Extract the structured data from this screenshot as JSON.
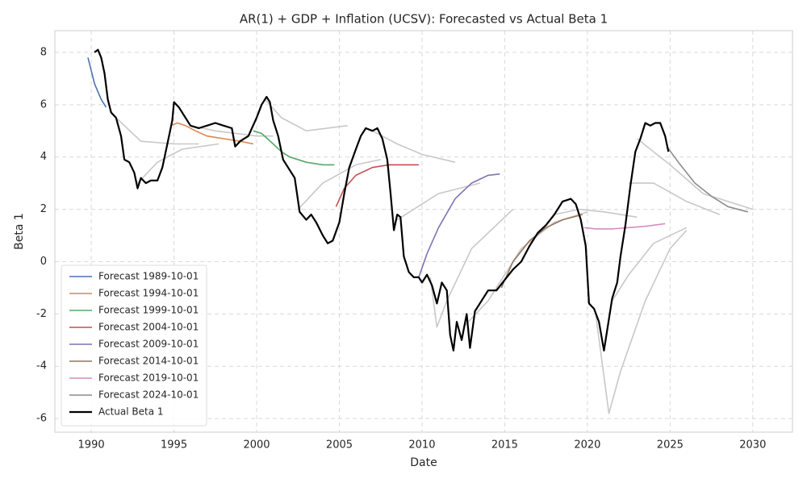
{
  "chart_data": {
    "type": "line",
    "title": "AR(1) + GDP + Inflation (UCSV): Forecasted vs Actual Beta 1",
    "x_label": "Date",
    "y_label": "Beta 1",
    "xlim": [
      1987.8,
      2032.4
    ],
    "ylim": [
      -6.52,
      8.83
    ],
    "xticks": [
      1990,
      1995,
      2000,
      2005,
      2010,
      2015,
      2020,
      2025,
      2030
    ],
    "yticks": [
      -6,
      -4,
      -2,
      0,
      2,
      4,
      6,
      8
    ],
    "grid": true,
    "legend": "lower left",
    "series": [
      {
        "color": "#c8c8c8",
        "x": [
          1991.5,
          1993,
          1995,
          1996.5
        ],
        "values": [
          5.5,
          4.6,
          4.5,
          4.5
        ]
      },
      {
        "color": "#c8c8c8",
        "x": [
          1992.8,
          1994,
          1995.5,
          1997.7
        ],
        "values": [
          3.0,
          3.8,
          4.3,
          4.5
        ]
      },
      {
        "color": "#c8c8c8",
        "x": [
          1996,
          1997.5,
          2000,
          2001
        ],
        "values": [
          5.2,
          5.0,
          4.8,
          4.8
        ]
      },
      {
        "color": "#c8c8c8",
        "x": [
          2000.5,
          2001.5,
          2003,
          2005.5
        ],
        "values": [
          6.2,
          5.5,
          5.0,
          5.2
        ]
      },
      {
        "color": "#c8c8c8",
        "x": [
          2002.5,
          2004,
          2006,
          2007.5
        ],
        "values": [
          2.0,
          3.0,
          3.7,
          3.9
        ]
      },
      {
        "color": "#c8c8c8",
        "x": [
          2007,
          2008.5,
          2010,
          2012
        ],
        "values": [
          5.0,
          4.5,
          4.1,
          3.8
        ]
      },
      {
        "color": "#c8c8c8",
        "x": [
          2008.5,
          2009.5,
          2011,
          2013.5
        ],
        "values": [
          1.6,
          2.0,
          2.6,
          3.0
        ]
      },
      {
        "color": "#c8c8c8",
        "x": [
          2010.5,
          2010.9,
          2011.5,
          2013,
          2015.5
        ],
        "values": [
          -0.6,
          -2.5,
          -1.5,
          0.5,
          2.0
        ]
      },
      {
        "color": "#c8c8c8",
        "x": [
          2012.5,
          2014,
          2016,
          2018,
          2020
        ],
        "values": [
          -2.5,
          -1.5,
          0.5,
          1.5,
          1.9
        ]
      },
      {
        "color": "#c8c8c8",
        "x": [
          2018,
          2019.5,
          2021,
          2023
        ],
        "values": [
          1.8,
          2.0,
          1.9,
          1.7
        ]
      },
      {
        "color": "#c8c8c8",
        "x": [
          2020.5,
          2021.3,
          2022,
          2023.5,
          2025,
          2026
        ],
        "values": [
          -2.0,
          -5.8,
          -4.2,
          -1.5,
          0.5,
          1.2
        ]
      },
      {
        "color": "#c8c8c8",
        "x": [
          2021.5,
          2022.5,
          2024,
          2026
        ],
        "values": [
          -1.5,
          -0.5,
          0.7,
          1.3
        ]
      },
      {
        "color": "#c8c8c8",
        "x": [
          2023,
          2025,
          2027,
          2030
        ],
        "values": [
          4.7,
          3.7,
          2.6,
          2.0
        ]
      },
      {
        "color": "#c8c8c8",
        "x": [
          2022.5,
          2024,
          2026,
          2028
        ],
        "values": [
          3.0,
          3.0,
          2.3,
          1.8
        ]
      },
      {
        "name": "Forecast 1989-10-01",
        "color": "#4c72b0",
        "x": [
          1989.8,
          1990.2,
          1990.6,
          1990.9
        ],
        "values": [
          7.8,
          6.8,
          6.2,
          5.9
        ]
      },
      {
        "name": "Forecast 1994-10-01",
        "color": "#dd8452",
        "x": [
          1994.8,
          1995.2,
          1995.7,
          1996.3,
          1997,
          1998,
          1999,
          1999.8
        ],
        "values": [
          5.2,
          5.3,
          5.2,
          5.0,
          4.8,
          4.7,
          4.6,
          4.5
        ]
      },
      {
        "name": "Forecast 1999-10-01",
        "color": "#55a868",
        "x": [
          1999.8,
          2000.3,
          2001,
          2001.5,
          2002,
          2003,
          2004,
          2004.7
        ],
        "values": [
          5.0,
          4.9,
          4.5,
          4.2,
          4.0,
          3.8,
          3.7,
          3.7
        ]
      },
      {
        "name": "Forecast 2004-10-01",
        "color": "#c44e52",
        "x": [
          2004.8,
          2005.3,
          2006,
          2007,
          2008,
          2009,
          2009.8
        ],
        "values": [
          2.1,
          2.8,
          3.3,
          3.6,
          3.7,
          3.7,
          3.7
        ]
      },
      {
        "name": "Forecast 2009-10-01",
        "color": "#8172b3",
        "x": [
          2009.8,
          2010.3,
          2011,
          2012,
          2013,
          2014,
          2014.7
        ],
        "values": [
          -0.6,
          0.3,
          1.3,
          2.4,
          3.0,
          3.3,
          3.35
        ]
      },
      {
        "name": "Forecast 2014-10-01",
        "color": "#937860",
        "x": [
          2014.8,
          2015.5,
          2016.5,
          2017.5,
          2018.5,
          2019.7
        ],
        "values": [
          -1.0,
          0.0,
          0.8,
          1.3,
          1.6,
          1.8
        ]
      },
      {
        "name": "Forecast 2019-10-01",
        "color": "#da8bc3",
        "x": [
          2019.8,
          2020.5,
          2021.5,
          2022.5,
          2023.5,
          2024.7
        ],
        "values": [
          1.3,
          1.25,
          1.25,
          1.3,
          1.35,
          1.45
        ]
      },
      {
        "name": "Forecast 2024-10-01",
        "color": "#8c8c8c",
        "x": [
          2024.8,
          2025.5,
          2026.5,
          2027.5,
          2028.5,
          2029.7
        ],
        "values": [
          4.4,
          3.8,
          3.0,
          2.5,
          2.1,
          1.9
        ]
      },
      {
        "name": "Actual Beta 1",
        "color": "#000000",
        "x": [
          1990.2,
          1990.4,
          1990.6,
          1990.8,
          1991.0,
          1991.2,
          1991.5,
          1991.8,
          1992.0,
          1992.3,
          1992.6,
          1992.8,
          1993.0,
          1993.3,
          1993.6,
          1994.0,
          1994.3,
          1994.6,
          1994.9,
          1995.0,
          1995.3,
          1995.6,
          1996.0,
          1996.5,
          1997.0,
          1997.5,
          1998.0,
          1998.5,
          1998.7,
          1999.0,
          1999.5,
          2000.0,
          2000.3,
          2000.6,
          2000.8,
          2001.0,
          2001.3,
          2001.6,
          2002.0,
          2002.3,
          2002.6,
          2003.0,
          2003.3,
          2003.6,
          2004.0,
          2004.3,
          2004.6,
          2005.0,
          2005.3,
          2005.6,
          2006.0,
          2006.3,
          2006.6,
          2007.0,
          2007.3,
          2007.6,
          2007.9,
          2008.1,
          2008.3,
          2008.5,
          2008.7,
          2008.9,
          2009.2,
          2009.5,
          2009.8,
          2010.0,
          2010.3,
          2010.6,
          2010.9,
          2011.2,
          2011.5,
          2011.7,
          2011.9,
          2012.1,
          2012.4,
          2012.7,
          2012.9,
          2013.2,
          2013.6,
          2014.0,
          2014.5,
          2015.0,
          2015.5,
          2016.0,
          2016.5,
          2017.0,
          2017.5,
          2018.0,
          2018.5,
          2019.0,
          2019.3,
          2019.6,
          2019.9,
          2020.1,
          2020.4,
          2020.7,
          2021.0,
          2021.2,
          2021.5,
          2021.8,
          2022.0,
          2022.3,
          2022.6,
          2022.9,
          2023.2,
          2023.5,
          2023.8,
          2024.1,
          2024.4,
          2024.7,
          2024.9
        ],
        "values": [
          8.0,
          8.1,
          7.8,
          7.2,
          6.2,
          5.7,
          5.5,
          4.8,
          3.9,
          3.8,
          3.4,
          2.8,
          3.2,
          3.0,
          3.1,
          3.1,
          3.6,
          4.5,
          5.4,
          6.1,
          5.9,
          5.6,
          5.2,
          5.1,
          5.2,
          5.3,
          5.2,
          5.1,
          4.4,
          4.6,
          4.8,
          5.5,
          6.0,
          6.3,
          6.1,
          5.4,
          4.8,
          3.9,
          3.5,
          3.2,
          1.9,
          1.6,
          1.8,
          1.5,
          1.0,
          0.7,
          0.8,
          1.5,
          2.6,
          3.6,
          4.3,
          4.8,
          5.1,
          5.0,
          5.1,
          4.7,
          3.9,
          2.6,
          1.2,
          1.8,
          1.7,
          0.2,
          -0.4,
          -0.6,
          -0.6,
          -0.8,
          -0.5,
          -0.9,
          -1.6,
          -0.8,
          -1.1,
          -2.8,
          -3.4,
          -2.3,
          -3.0,
          -2.0,
          -3.3,
          -1.9,
          -1.5,
          -1.1,
          -1.1,
          -0.7,
          -0.3,
          0.0,
          0.6,
          1.1,
          1.4,
          1.8,
          2.3,
          2.4,
          2.2,
          1.6,
          0.6,
          -1.6,
          -1.8,
          -2.3,
          -3.4,
          -2.6,
          -1.4,
          -0.8,
          0.2,
          1.4,
          2.9,
          4.2,
          4.7,
          5.3,
          5.2,
          5.3,
          5.3,
          4.8,
          4.2
        ]
      }
    ]
  }
}
